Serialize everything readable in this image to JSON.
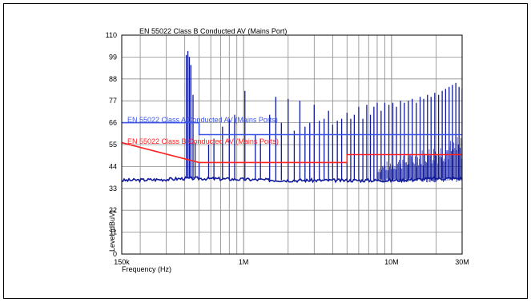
{
  "chart_data": {
    "type": "line",
    "title": "EN 55022 Class B Conducted AV (Mains Port)",
    "xlabel": "Frequency (Hz)",
    "ylabel": "Level (dBuV)",
    "x_scale": "log",
    "xlim": [
      150000,
      30000000
    ],
    "ylim": [
      0,
      110
    ],
    "grid": true,
    "y_ticks": [
      0,
      11,
      22,
      33,
      44,
      55,
      66,
      77,
      88,
      99,
      110
    ],
    "x_tick_labels": [
      {
        "value": 150000,
        "label": "150k"
      },
      {
        "value": 1000000,
        "label": "1M"
      },
      {
        "value": 10000000,
        "label": "10M"
      },
      {
        "value": 30000000,
        "label": "30M"
      }
    ],
    "limit_lines": [
      {
        "name": "EN 55022 Class A Conducted AV (Mains Ports)",
        "color": "#3a54e8",
        "points": [
          [
            150000,
            66
          ],
          [
            500000,
            66
          ],
          [
            500000,
            60
          ],
          [
            30000000,
            60
          ]
        ]
      },
      {
        "name": "EN 55022 Class B Conducted AV (Mains Ports)",
        "color": "#ff2020",
        "points": [
          [
            150000,
            56
          ],
          [
            500000,
            46
          ],
          [
            5000000,
            46
          ],
          [
            5000000,
            50
          ],
          [
            30000000,
            50
          ]
        ]
      }
    ],
    "measurement": {
      "color": "#101a9a",
      "baseline": [
        [
          150000,
          37
        ],
        [
          300000,
          37.5
        ],
        [
          400000,
          38
        ],
        [
          500000,
          38
        ],
        [
          1000000,
          37.5
        ],
        [
          2000000,
          37
        ],
        [
          5000000,
          37
        ],
        [
          8000000,
          37
        ],
        [
          10000000,
          37
        ],
        [
          15000000,
          37.5
        ],
        [
          20000000,
          38
        ],
        [
          30000000,
          38
        ]
      ],
      "peaks": [
        [
          410000,
          100
        ],
        [
          420000,
          102
        ],
        [
          430000,
          99
        ],
        [
          440000,
          95
        ],
        [
          455000,
          80
        ],
        [
          470000,
          56
        ],
        [
          500000,
          46
        ],
        [
          580000,
          55
        ],
        [
          630000,
          58
        ],
        [
          720000,
          64
        ],
        [
          800000,
          68
        ],
        [
          870000,
          70
        ],
        [
          1020000,
          82
        ],
        [
          1200000,
          60
        ],
        [
          1300000,
          58
        ],
        [
          1500000,
          70
        ],
        [
          1650000,
          79
        ],
        [
          1800000,
          66
        ],
        [
          2000000,
          78
        ],
        [
          2200000,
          62
        ],
        [
          2400000,
          77
        ],
        [
          2600000,
          64
        ],
        [
          2800000,
          66
        ],
        [
          3000000,
          75
        ],
        [
          3250000,
          67
        ],
        [
          3500000,
          68
        ],
        [
          3750000,
          72
        ],
        [
          4000000,
          65
        ],
        [
          4300000,
          67
        ],
        [
          4600000,
          68
        ],
        [
          5000000,
          71
        ],
        [
          5300000,
          68
        ],
        [
          5600000,
          70
        ],
        [
          6000000,
          74
        ],
        [
          6400000,
          68
        ],
        [
          6800000,
          75
        ],
        [
          7200000,
          70
        ],
        [
          7600000,
          74
        ],
        [
          8000000,
          76
        ],
        [
          8500000,
          72
        ],
        [
          9000000,
          76
        ],
        [
          9600000,
          75
        ],
        [
          10200000,
          76
        ],
        [
          10800000,
          74
        ],
        [
          11500000,
          77
        ],
        [
          12200000,
          76
        ],
        [
          13000000,
          77
        ],
        [
          13800000,
          78
        ],
        [
          14700000,
          76
        ],
        [
          15600000,
          79
        ],
        [
          16500000,
          78
        ],
        [
          17500000,
          80
        ],
        [
          18500000,
          79
        ],
        [
          19600000,
          81
        ],
        [
          20800000,
          80
        ],
        [
          22000000,
          82
        ],
        [
          23200000,
          83
        ],
        [
          24500000,
          84
        ],
        [
          25800000,
          85
        ],
        [
          27200000,
          86
        ],
        [
          28600000,
          84
        ],
        [
          30000000,
          83
        ]
      ],
      "noise_band": {
        "from": 8000000,
        "to": 30000000,
        "low": 37,
        "high": 60
      }
    }
  }
}
